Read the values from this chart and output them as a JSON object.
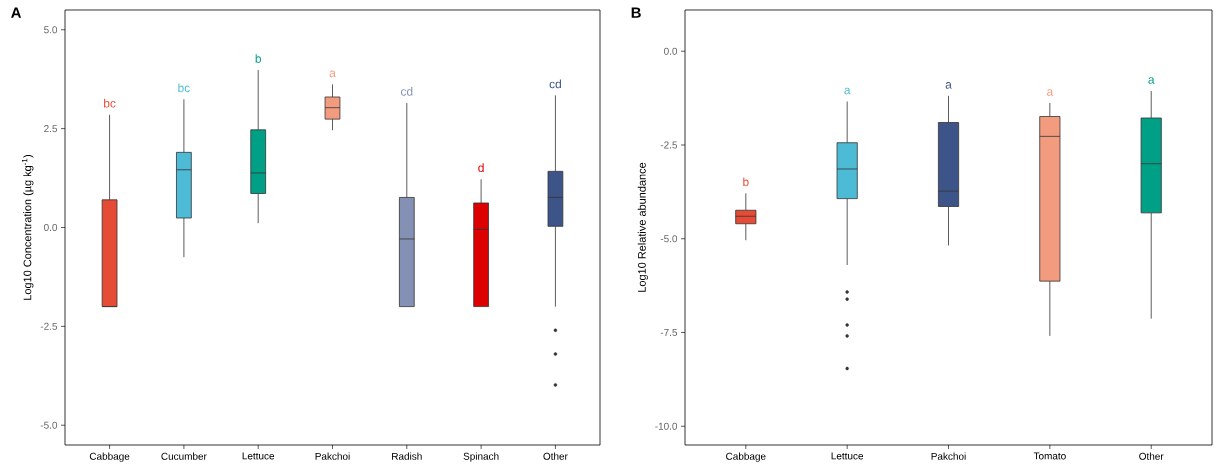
{
  "chart_data": [
    {
      "type": "box",
      "title": "A",
      "ylabel": "Log10 Concentration (µg kg$^{-1}$)",
      "categories": [
        "Cabbage",
        "Cucumber",
        "Lettuce",
        "Pakchoi",
        "Radish",
        "Spinach",
        "Other"
      ],
      "colors": [
        "#e64b35",
        "#4dbbd5",
        "#00a087",
        "#f39b7f",
        "#8491b4",
        "#dc0000",
        "#3c5488"
      ],
      "boxes": [
        {
          "low": -2.0,
          "q1": -2.0,
          "median": -2.0,
          "q3": 0.7,
          "high": 2.85
        },
        {
          "low": -0.75,
          "q1": 0.24,
          "median": 1.46,
          "q3": 1.9,
          "high": 3.24
        },
        {
          "low": 0.11,
          "q1": 0.86,
          "median": 1.38,
          "q3": 2.47,
          "high": 3.98
        },
        {
          "low": 2.46,
          "q1": 2.74,
          "median": 3.03,
          "q3": 3.3,
          "high": 3.62
        },
        {
          "low": -2.0,
          "q1": -2.0,
          "median": -0.29,
          "q3": 0.76,
          "high": 3.15
        },
        {
          "low": -2.0,
          "q1": -2.0,
          "median": -0.05,
          "q3": 0.62,
          "high": 1.22
        },
        {
          "low": -2.0,
          "q1": 0.03,
          "median": 0.76,
          "q3": 1.42,
          "high": 3.34,
          "outliers": [
            -2.6,
            -3.2,
            -3.98
          ]
        }
      ],
      "ylim": [
        -5.5,
        5.5
      ],
      "yticks": [
        {
          "value": -5,
          "label": "-5.0"
        },
        {
          "value": -2.5,
          "label": "-2.5"
        },
        {
          "value": 0,
          "label": "0.0"
        },
        {
          "value": 2.5,
          "label": "2.5"
        },
        {
          "value": 5,
          "label": "5.0"
        }
      ],
      "annotations": [
        "bc",
        "bc",
        "b",
        "a",
        "cd",
        "d",
        "cd"
      ],
      "grid": false
    },
    {
      "type": "box",
      "title": "B",
      "ylabel": "Log10 Relative abundance",
      "categories": [
        "Cabbage",
        "Lettuce",
        "Pakchoi",
        "Tomato",
        "Other"
      ],
      "colors": [
        "#e64b35",
        "#4dbbd5",
        "#3c5488",
        "#f39b7f",
        "#00a087"
      ],
      "boxes": [
        {
          "low": -5.04,
          "q1": -4.6,
          "median": -4.4,
          "q3": -4.24,
          "high": -3.79
        },
        {
          "low": -5.7,
          "q1": -3.93,
          "median": -3.14,
          "q3": -2.44,
          "high": -1.34,
          "outliers": [
            -6.42,
            -6.61,
            -7.3,
            -7.59,
            -8.46
          ]
        },
        {
          "low": -5.18,
          "q1": -4.14,
          "median": -3.73,
          "q3": -1.9,
          "high": -1.19
        },
        {
          "low": -7.59,
          "q1": -6.13,
          "median": -2.27,
          "q3": -1.74,
          "high": -1.38
        },
        {
          "low": -7.13,
          "q1": -4.31,
          "median": -3.0,
          "q3": -1.78,
          "high": -1.06
        }
      ],
      "ylim": [
        -10.5,
        1.1
      ],
      "yticks": [
        {
          "value": -10,
          "label": "-10.0"
        },
        {
          "value": -7.5,
          "label": "-7.5"
        },
        {
          "value": -5,
          "label": "-5.0"
        },
        {
          "value": -2.5,
          "label": "-2.5"
        },
        {
          "value": 0,
          "label": "0.0"
        }
      ],
      "annotations": [
        "b",
        "a",
        "a",
        "a",
        "a"
      ],
      "grid": false
    }
  ]
}
